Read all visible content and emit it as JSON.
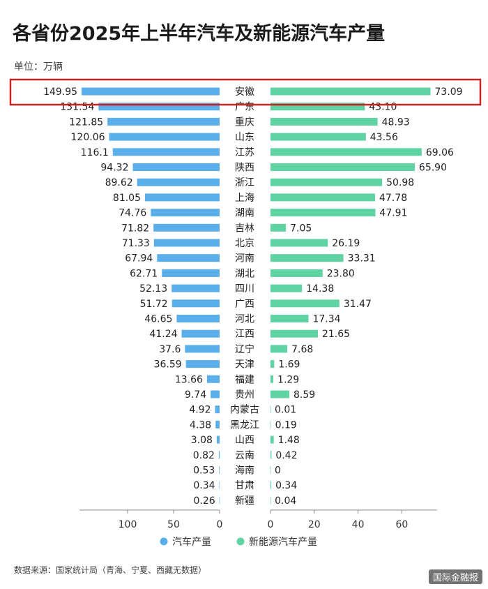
{
  "title": "各省份2025年上半年汽车及新能源汽车产量",
  "unit_label": "单位：万辆",
  "source": "数据来源：国家统计局（青海、宁夏、西藏无数据）",
  "watermark": "国际金融报",
  "colors": {
    "left_bar": "#5aaee9",
    "right_bar": "#5fd3a3",
    "highlight_box": "#cc2222",
    "axis": "#888888"
  },
  "chart_data": {
    "type": "bar",
    "orientation": "horizontal-butterfly",
    "categories": [
      "安徽",
      "广东",
      "重庆",
      "山东",
      "江苏",
      "陕西",
      "浙江",
      "上海",
      "湖南",
      "吉林",
      "北京",
      "河南",
      "湖北",
      "四川",
      "广西",
      "河北",
      "江西",
      "辽宁",
      "天津",
      "福建",
      "贵州",
      "内蒙古",
      "黑龙江",
      "山西",
      "云南",
      "海南",
      "甘肃",
      "新疆"
    ],
    "series": [
      {
        "name": "汽车产量",
        "side": "left",
        "values": [
          149.95,
          131.54,
          121.85,
          120.06,
          116.1,
          94.32,
          89.62,
          81.05,
          74.76,
          71.82,
          71.33,
          67.94,
          62.71,
          52.13,
          51.72,
          46.65,
          41.24,
          37.6,
          36.59,
          13.66,
          9.74,
          4.92,
          4.38,
          3.08,
          0.82,
          0.53,
          0.34,
          0.26
        ],
        "labels": [
          "149.95",
          "131.54",
          "121.85",
          "120.06",
          "116.1",
          "94.32",
          "89.62",
          "81.05",
          "74.76",
          "71.82",
          "71.33",
          "67.94",
          "62.71",
          "52.13",
          "51.72",
          "46.65",
          "41.24",
          "37.6",
          "36.59",
          "13.66",
          "9.74",
          "4.92",
          "4.38",
          "3.08",
          "0.82",
          "0.53",
          "0.34",
          "0.26"
        ]
      },
      {
        "name": "新能源汽车产量",
        "side": "right",
        "values": [
          73.09,
          43.1,
          48.93,
          43.56,
          69.06,
          65.9,
          50.98,
          47.78,
          47.91,
          7.05,
          26.19,
          33.31,
          23.8,
          14.38,
          31.47,
          17.34,
          21.65,
          7.68,
          1.69,
          1.29,
          8.59,
          0.01,
          0.19,
          1.48,
          0.42,
          0,
          0.34,
          0.04
        ],
        "labels": [
          "73.09",
          "43.10",
          "48.93",
          "43.56",
          "69.06",
          "65.90",
          "50.98",
          "47.78",
          "47.91",
          "7.05",
          "26.19",
          "33.31",
          "23.80",
          "14.38",
          "31.47",
          "17.34",
          "21.65",
          "7.68",
          "1.69",
          "1.29",
          "8.59",
          "0.01",
          "0.19",
          "1.48",
          "0.42",
          "0",
          "0.34",
          "0.04"
        ]
      }
    ],
    "left_axis": {
      "ticks": [
        100,
        50,
        0
      ],
      "tick_labels": [
        "100",
        "50",
        "0"
      ],
      "range": [
        0,
        150
      ]
    },
    "right_axis": {
      "ticks": [
        0,
        20,
        40,
        60
      ],
      "tick_labels": [
        "0",
        "20",
        "40",
        "60"
      ],
      "range": [
        0,
        75
      ]
    },
    "highlight_category": "安徽",
    "legend": {
      "position": "bottom",
      "entries": [
        "汽车产量",
        "新能源汽车产量"
      ]
    },
    "grid": false
  }
}
